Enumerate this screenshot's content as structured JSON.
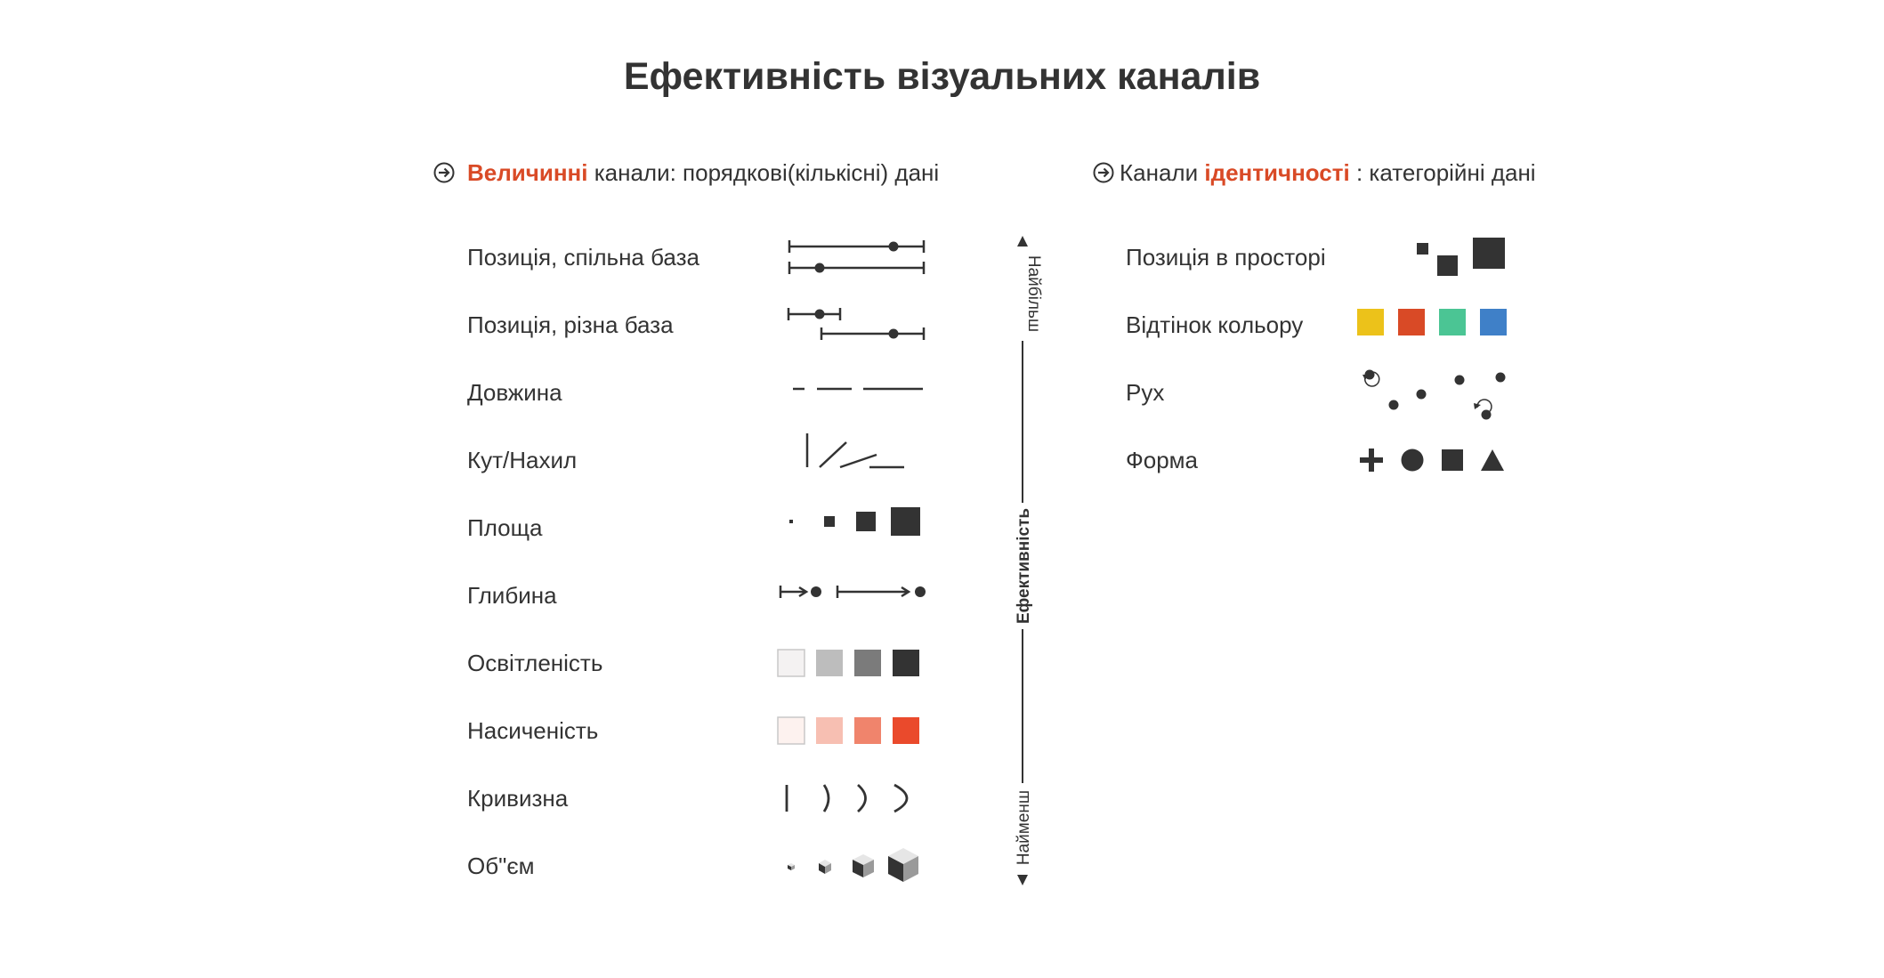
{
  "title": "Ефективність візуальних каналів",
  "magnitude": {
    "heading_prefix": "",
    "heading_highlight": "Величинні",
    "heading_suffix": "канали: порядкові(кількісні) дані",
    "rows": [
      {
        "label": "Позиція, спільна база"
      },
      {
        "label": "Позиція, різна база"
      },
      {
        "label": "Довжина"
      },
      {
        "label": "Кут/Нахил"
      },
      {
        "label": "Площа"
      },
      {
        "label": "Глибина"
      },
      {
        "label": "Освітленість"
      },
      {
        "label": "Насиченість"
      },
      {
        "label": "Кривизна"
      },
      {
        "label": "Об\"єм"
      }
    ],
    "lightness_colors": [
      "#f4f2f2",
      "#bdbdbd",
      "#7b7b7b",
      "#333333"
    ],
    "saturation_colors": [
      "#fdf2ef",
      "#f7bfb2",
      "#f0846c",
      "#ea4a2c"
    ]
  },
  "effectiveness_axis": {
    "label": "Ефективність",
    "top": "Найбільш",
    "bottom": "Найменш"
  },
  "identity": {
    "heading_prefix": "Канали",
    "heading_highlight": "ідентичності",
    "heading_suffix": ": категорійні  дані",
    "rows": [
      {
        "label": "Позиція в просторі"
      },
      {
        "label": "Відтінок кольору"
      },
      {
        "label": "Рух"
      },
      {
        "label": "Форма"
      }
    ],
    "hue_colors": [
      "#ecc21a",
      "#d94a26",
      "#4bc594",
      "#3f80c8"
    ]
  },
  "icons": [
    "arrow-right-circle-icon",
    "plus-icon",
    "circle-icon",
    "square-icon",
    "triangle-icon",
    "rotate-icon",
    "cube-icon"
  ],
  "colors": {
    "text": "#333333",
    "accent": "#d94a26"
  }
}
